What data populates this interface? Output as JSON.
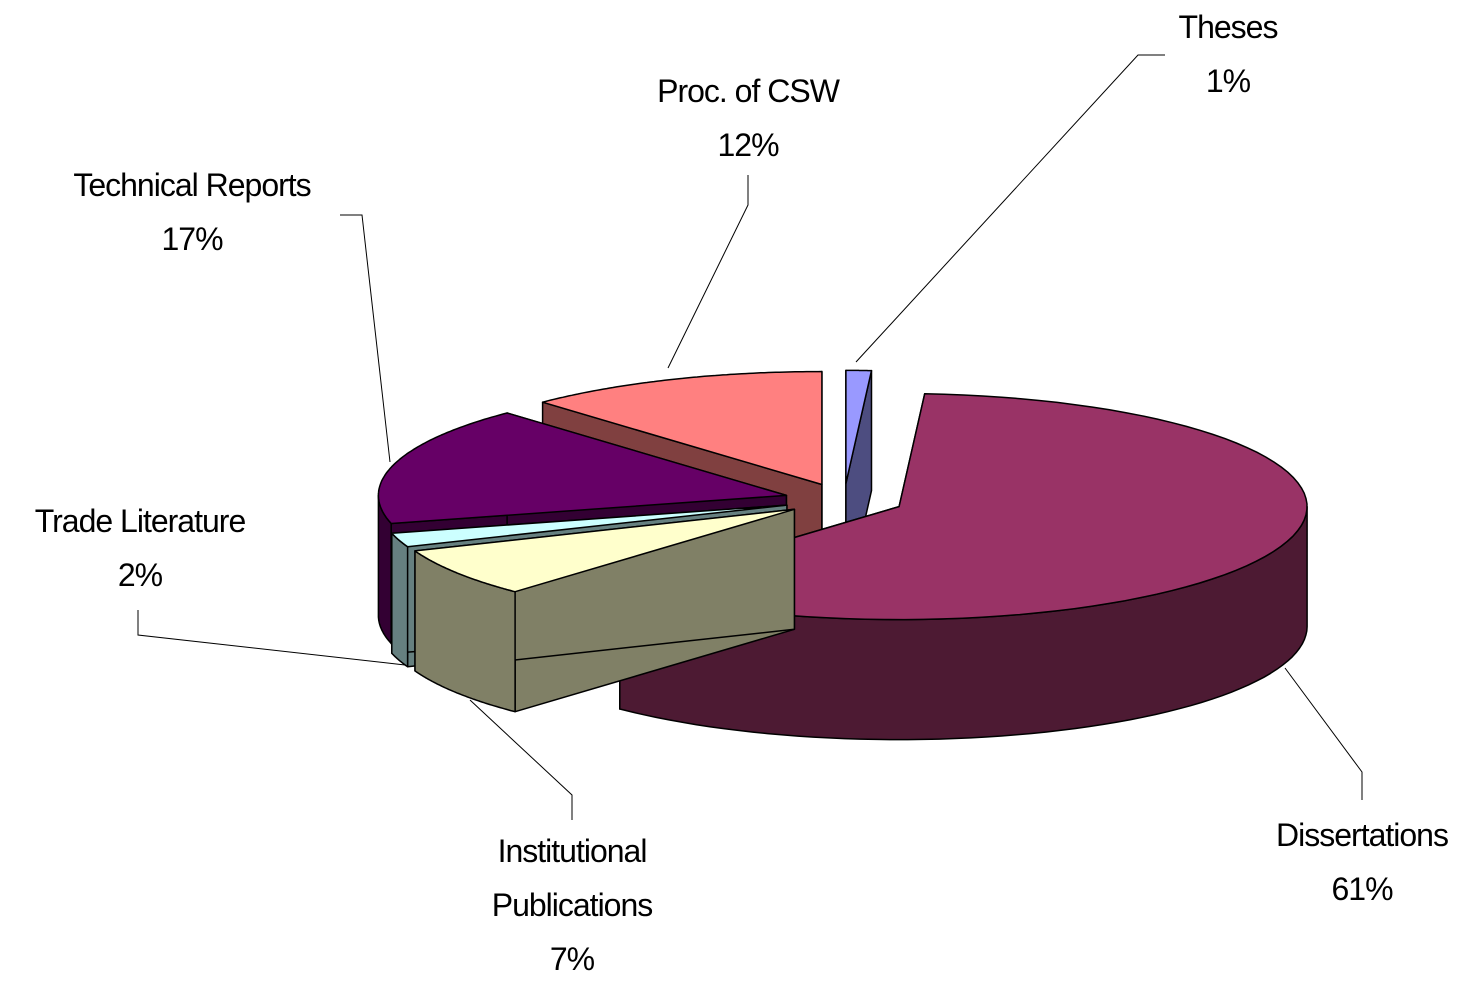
{
  "chart_data": {
    "type": "pie3d",
    "categories": [
      "Theses",
      "Dissertations",
      "Institutional Publications",
      "Trade Literature",
      "Technical Reports",
      "Proc. of CSW"
    ],
    "values": [
      1,
      61,
      7,
      2,
      17,
      12
    ],
    "value_labels": [
      "1%",
      "61%",
      "7%",
      "2%",
      "17%",
      "12%"
    ],
    "colors": [
      "#9999ff",
      "#993366",
      "#ffffcc",
      "#ccffff",
      "#660066",
      "#ff8080"
    ]
  }
}
